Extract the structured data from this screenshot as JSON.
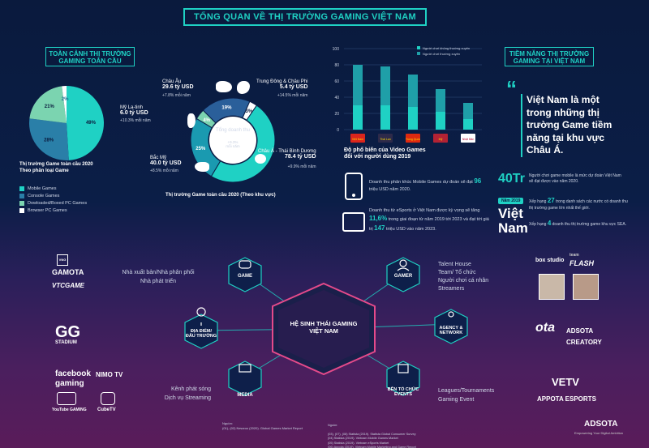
{
  "title": "TỔNG QUAN VỀ THỊ TRƯỜNG GAMING VIỆT NAM",
  "global": {
    "banner": "TOÀN CẢNH THỊ TRƯỜNG\nGAMING TOÀN CẦU",
    "pie_caption": "Thị trường Game toàn cầu 2020\nTheo phân loại Game",
    "legend": [
      {
        "label": "Mobile Games",
        "color": "#1fd1c4"
      },
      {
        "label": "Console Games",
        "color": "#2a7fa8"
      },
      {
        "label": "Dowloaded/Boxed PC Games",
        "color": "#7bd4b0"
      },
      {
        "label": "Browser PC Games",
        "color": "#ffffff"
      }
    ],
    "donut_caption": "Thị trường Game toàn cầu 2020 (Theo khu vực)"
  },
  "pie": {
    "type": "pie",
    "slices": [
      {
        "label": "Mobile Games",
        "value": 49,
        "text": "49%",
        "color": "#1fd1c4"
      },
      {
        "label": "Console Games",
        "value": 28,
        "text": "28%",
        "color": "#2a7fa8"
      },
      {
        "label": "Dowloaded/Boxed PC Games",
        "value": 21,
        "text": "21%",
        "color": "#7bd4b0"
      },
      {
        "label": "Browser PC Games",
        "value": 2,
        "text": "2%",
        "color": "#ffffff"
      }
    ]
  },
  "regions": {
    "center_label": "Tổng doanh thu",
    "center_value": "159.3 tỷ USD",
    "center_growth": "+9.3%\nmỗi năm",
    "slices": [
      {
        "value": 49,
        "text": "49%",
        "color": "#1fd1c4"
      },
      {
        "value": 25,
        "text": "25%",
        "color": "#1a9ab0"
      },
      {
        "value": 4,
        "text": "4%",
        "color": "#7bd4b0"
      },
      {
        "value": 19,
        "text": "19%",
        "color": "#2a5f9a"
      },
      {
        "value": 3,
        "text": "3%",
        "color": "#ffffff"
      }
    ],
    "europe": {
      "name": "Châu Âu",
      "value": "29.6 tỷ USD",
      "growth": "+7.8% mỗi năm"
    },
    "latam": {
      "name": "Mỹ La-tinh",
      "value": "6.0 tỷ USD",
      "growth": "+10.3% mỗi năm"
    },
    "na": {
      "name": "Bắc Mỹ",
      "value": "40.0 tỷ USD",
      "growth": "+8.5% mỗi năm"
    },
    "mea": {
      "name": "Trung Đông & Châu Phi",
      "value": "5.4 tỷ USD",
      "growth": "+14.5% mỗi năm"
    },
    "apac": {
      "name": "Châu Á - Thái Bình Dương",
      "value": "78.4 tỷ USD",
      "growth": "+9.9% mỗi năm"
    }
  },
  "bar_chart": {
    "type": "bar",
    "categories": [
      "Việt Nam",
      "Thái Lan",
      "Trung Quốc",
      "Mỹ",
      "Nhật Bản"
    ],
    "series": [
      {
        "name": "Người chơi không thường xuyên",
        "color": "#1fd1c4",
        "values": [
          30,
          30,
          28,
          22,
          13
        ]
      },
      {
        "name": "Người chơi thường xuyên",
        "color": "#1f9fa8",
        "values": [
          50,
          48,
          40,
          28,
          20
        ]
      }
    ],
    "yticks": [
      "0",
      "20",
      "40",
      "60",
      "80",
      "100"
    ],
    "ylim": [
      0,
      100
    ],
    "caption": "Độ phổ biến của Video Games\nđối với người dùng 2019"
  },
  "mobile_stat": {
    "text_a": "Doanh thu phân khúc Mobile Games dự đoán sẽ đạt ",
    "highlight": "96",
    "text_b": " triệu USD năm 2020."
  },
  "esports_stat": {
    "text_a": "Doanh thu từ eSports ở Việt Nam được kỳ vọng sẽ tăng ",
    "highlight1": "11,6%",
    "text_b": " trong giai đoạn từ năm 2019 tới 2023 và đạt tới giá trị ",
    "highlight2": "147",
    "text_c": " triệu USD vào năm 2023."
  },
  "potential": {
    "banner": "TIỀM NĂNG THỊ TRƯỜNG\nGAMING TẠI VIỆT NAM",
    "quote": "Việt Nam là một trong những thị trường Game tiềm năng tại khu vực Châu Á.",
    "players_big": "40Tr",
    "players_text": "Người chơi game mobile là mức dự đoán Việt Nam sẽ đạt được vào năm 2020.",
    "year_badge": "Năm 2019",
    "vietnam_word": "Việt\nNam",
    "rank27_a": "Xếp hạng ",
    "rank27_n": "27",
    "rank27_b": " trong danh sách các nước có doanh thu thị trường game lớn nhất thế giới.",
    "rank4_a": "Xếp hạng ",
    "rank4_n": "4",
    "rank4_b": " doanh thu thị trường game khu vực SEA."
  },
  "ecosystem": {
    "center": "HỆ SINH THÁI GAMING\nVIỆT NAM",
    "game": "GAME",
    "gamer": "GAMER",
    "venue": "ĐỊA ĐIỂM/\nĐẤU TRƯỜNG",
    "agency": "AGENCY &\nNETWORK",
    "media": "MEDIA",
    "events": "BÊN TỔ CHỨC\nEVENTS",
    "game_desc": "Nhà xuất bản/Nhà phân phối\nNhà phát triển",
    "gamer_desc": "Talent House\nTeam/ Tổ chức\nNgười chơi cá nhân\nStreamers",
    "media_desc": "Kênh phát sóng\nDịch vụ Streaming",
    "events_desc": "Leagues/Tournaments\nGaming Event"
  },
  "logos": {
    "vng": "VNG",
    "gamota": "GAMOTA",
    "vtc": "VTCGAME",
    "gg": "GG",
    "gg_sub": "STADIUM",
    "fb": "facebook",
    "fb_sub": "gaming",
    "nimo": "NIMO TV",
    "yt": "YouTube",
    "yt_sub": "GAMING",
    "cube": "CubeTV",
    "box": "box studio",
    "flash": "FLASH",
    "team": "team",
    "ota": "ota",
    "adsota": "ADSOTA",
    "creatory": "CREATORY",
    "vetv": "VETV",
    "appota": "APPOTA ESPORTS",
    "adsota_footer": "ADSOTA",
    "adsota_tag": "Empowering Your Digital Ambition"
  },
  "sources": {
    "label1": "Nguồn:",
    "text1": "(01), (02) Newzoo (2020). Global Games Market Report",
    "label2": "Nguồn:",
    "text2": "(03), (07), (08) Statista (2019). Statista Global Consumer Survey\n(04) Statista (2019). Vietnam Mobile Games Market\n(05) Statista (2019). Vietnam eSports Market\n(06) Appota (2019). Vietnam Mobile Marketing and Game Report"
  }
}
